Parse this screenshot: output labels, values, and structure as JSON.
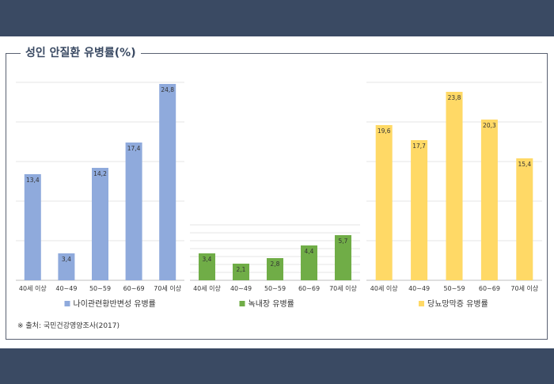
{
  "title": "성인 안질환 유병률(%)",
  "source": "※ 출처: 국민건강영양조사(2017)",
  "categories": [
    "40세 이상",
    "40~49",
    "50~59",
    "60~69",
    "70세 이상"
  ],
  "chart_data": [
    {
      "type": "bar",
      "categories": [
        "40세 이상",
        "40~49",
        "50~59",
        "60~69",
        "70세 이상"
      ],
      "series": [
        {
          "name": "나이관련황반변성 유병률",
          "values": [
            13.4,
            3.4,
            14.2,
            17.4,
            24.8
          ]
        }
      ],
      "value_labels": [
        "13,4",
        "3,4",
        "14,2",
        "17,4",
        "24,8"
      ],
      "color": "#8faadc",
      "ylim": [
        0,
        25
      ],
      "grid": true
    },
    {
      "type": "bar",
      "categories": [
        "40세 이상",
        "40~49",
        "50~59",
        "60~69",
        "70세 이상"
      ],
      "series": [
        {
          "name": "녹내장 유병률",
          "values": [
            3.4,
            2.1,
            2.8,
            4.4,
            5.7
          ]
        }
      ],
      "value_labels": [
        "3,4",
        "2,1",
        "2,8",
        "4,4",
        "5,7"
      ],
      "color": "#70ad47",
      "ylim": [
        0,
        7
      ],
      "grid": true
    },
    {
      "type": "bar",
      "categories": [
        "40세 이상",
        "40~49",
        "50~59",
        "60~69",
        "70세 이상"
      ],
      "series": [
        {
          "name": "당뇨망막증 유병률",
          "values": [
            19.6,
            17.7,
            23.8,
            20.3,
            15.4
          ]
        }
      ],
      "value_labels": [
        "19,6",
        "17,7",
        "23,8",
        "20,3",
        "15,4"
      ],
      "color": "#ffd966",
      "ylim": [
        0,
        25
      ],
      "grid": true
    }
  ]
}
